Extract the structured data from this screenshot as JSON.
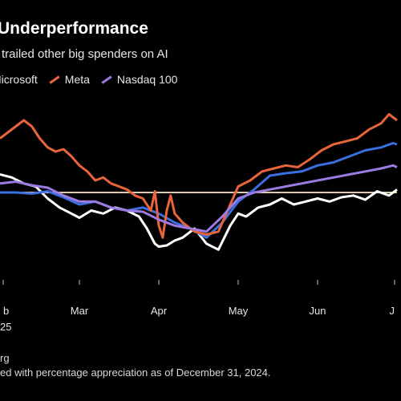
{
  "chart_data": {
    "type": "line",
    "title": "Underperformance",
    "subtitle": "trailed other big spenders on AI",
    "year_label": "25",
    "source_fragment": "rg",
    "footnote_fragment": "ed with percentage appreciation as of December 31, 2024.",
    "x_ticks": [
      "b",
      "Mar",
      "Apr",
      "May",
      "Jun",
      "J"
    ],
    "x_tick_positions": [
      0,
      1,
      2,
      3,
      4,
      5
    ],
    "baseline": 0,
    "ylim": [
      -14,
      16
    ],
    "grid": false,
    "legend_position": "top-left",
    "series": [
      {
        "name": "",
        "color": "#ffffff",
        "x": [
          0,
          0.15,
          0.3,
          0.45,
          0.6,
          0.75,
          0.9,
          1.0,
          1.15,
          1.3,
          1.45,
          1.6,
          1.75,
          1.85,
          1.95,
          2.0,
          2.1,
          2.2,
          2.3,
          2.45,
          2.6,
          2.75,
          2.9,
          3.0,
          3.1,
          3.25,
          3.4,
          3.55,
          3.7,
          3.85,
          4.0,
          4.15,
          4.3,
          4.45,
          4.6,
          4.75,
          4.9,
          5.0
        ],
        "y": [
          3,
          2.5,
          1.5,
          1.0,
          -1.0,
          -2.5,
          -3.5,
          -4.2,
          -3.0,
          -3.5,
          -2.5,
          -3.0,
          -4.0,
          -6.0,
          -8.5,
          -9.0,
          -8.8,
          -8.0,
          -7.5,
          -6.0,
          -8.5,
          -9.5,
          -5.5,
          -3.5,
          -4.0,
          -2.5,
          -2.0,
          -1.0,
          -2.0,
          -1.5,
          -1.0,
          -1.5,
          -0.8,
          -0.5,
          -1.2,
          0.2,
          -0.5,
          0.5
        ]
      },
      {
        "name": "Microsoft",
        "color": "#3b6fe0",
        "x": [
          0,
          0.2,
          0.4,
          0.6,
          0.8,
          1.0,
          1.2,
          1.4,
          1.6,
          1.8,
          2.0,
          2.2,
          2.4,
          2.6,
          2.8,
          3.0,
          3.2,
          3.4,
          3.6,
          3.8,
          4.0,
          4.2,
          4.4,
          4.6,
          4.8,
          4.95,
          5.0
        ],
        "y": [
          0.0,
          0.0,
          -0.2,
          0.2,
          -0.8,
          -2.0,
          -1.5,
          -2.5,
          -3.0,
          -2.5,
          -3.5,
          -5.0,
          -6.0,
          -7.5,
          -5.0,
          -1.5,
          0.5,
          2.8,
          3.2,
          3.5,
          4.5,
          5.0,
          6.0,
          7.0,
          7.5,
          8.2,
          8.0
        ]
      },
      {
        "name": "Meta",
        "color": "#e8643a",
        "x": [
          0,
          0.1,
          0.2,
          0.3,
          0.4,
          0.5,
          0.6,
          0.7,
          0.8,
          0.9,
          1.0,
          1.1,
          1.2,
          1.3,
          1.4,
          1.5,
          1.6,
          1.7,
          1.8,
          1.9,
          1.95,
          2.0,
          2.05,
          2.1,
          2.15,
          2.2,
          2.3,
          2.45,
          2.6,
          2.75,
          2.9,
          3.0,
          3.15,
          3.3,
          3.45,
          3.6,
          3.75,
          3.9,
          4.05,
          4.2,
          4.35,
          4.5,
          4.65,
          4.8,
          4.9,
          5.0
        ],
        "y": [
          9,
          10,
          11,
          12,
          11,
          9,
          7.5,
          6.8,
          7.2,
          6.0,
          4.5,
          3.5,
          2.0,
          2.5,
          1.5,
          1.0,
          0.5,
          -0.5,
          -1.0,
          -3.0,
          0.2,
          -5.5,
          -7.5,
          -3.0,
          -0.5,
          -3.5,
          -5.0,
          -6.5,
          -7.0,
          -6.5,
          -2.0,
          1.0,
          2.0,
          3.5,
          4.0,
          4.5,
          4.2,
          5.5,
          7.0,
          8.0,
          8.5,
          9.0,
          10.5,
          11.5,
          13.0,
          12.0
        ]
      },
      {
        "name": "Nasdaq 100",
        "color": "#9b7be0",
        "x": [
          0,
          0.2,
          0.4,
          0.6,
          0.8,
          1.0,
          1.2,
          1.4,
          1.6,
          1.8,
          2.0,
          2.2,
          2.4,
          2.6,
          2.8,
          3.0,
          3.2,
          3.4,
          3.6,
          3.8,
          4.0,
          4.2,
          4.4,
          4.6,
          4.8,
          4.95,
          5.0
        ],
        "y": [
          1.5,
          1.8,
          1.2,
          0.8,
          -0.5,
          -1.5,
          -1.5,
          -2.5,
          -3.0,
          -3.2,
          -4.5,
          -5.5,
          -6.0,
          -6.5,
          -4.0,
          -1.0,
          0.0,
          0.5,
          1.0,
          1.5,
          2.0,
          2.5,
          3.0,
          3.5,
          4.0,
          4.5,
          4.2
        ]
      }
    ]
  }
}
